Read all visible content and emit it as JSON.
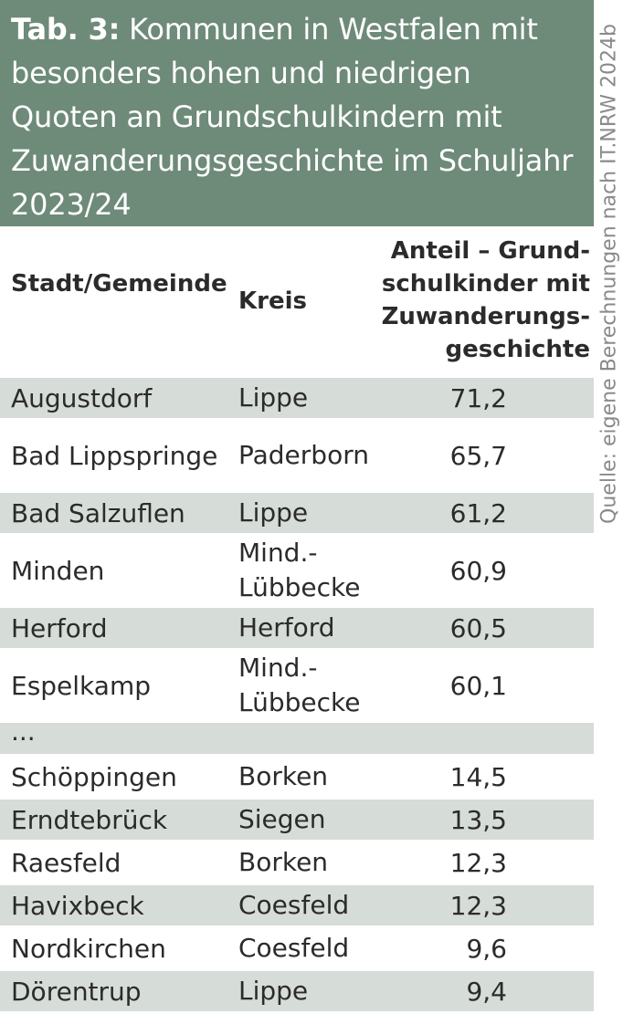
{
  "title": {
    "label": "Tab. 3:",
    "text": "Kommunen in Westfalen mit besonders hohen und niedrigen Quoten an Grundschulkindern mit Zuwanderungsgeschichte im Schul­jahr 2023/24"
  },
  "headers": {
    "city": "Stadt/Gemein­de",
    "kreis": "Kreis",
    "value": "Anteil – Grund­schulkinder mit Zuwanderungs­geschichte"
  },
  "rows": [
    {
      "city": "Augustdorf",
      "kreis": "Lippe",
      "value": "71,2"
    },
    {
      "city": "Bad Lippspringe",
      "kreis": "Pader­born",
      "value": "65,7"
    },
    {
      "city": "Bad Salzuflen",
      "kreis": "Lippe",
      "value": "61,2"
    },
    {
      "city": "Minden",
      "kreis": "Mind.-Lübbecke",
      "value": "60,9"
    },
    {
      "city": "Herford",
      "kreis": "Herford",
      "value": "60,5"
    },
    {
      "city": "Espelkamp",
      "kreis": "Mind.-Lübbecke",
      "value": "60,1"
    },
    {
      "city": "...",
      "kreis": "",
      "value": ""
    },
    {
      "city": "Schöppingen",
      "kreis": "Borken",
      "value": "14,5"
    },
    {
      "city": "Erndtebrück",
      "kreis": "Siegen",
      "value": "13,5"
    },
    {
      "city": "Raesfeld",
      "kreis": "Borken",
      "value": "12,3"
    },
    {
      "city": "Havixbeck",
      "kreis": "Coesfeld",
      "value": "12,3"
    },
    {
      "city": "Nordkirchen",
      "kreis": "Coesfeld",
      "value": "9,6"
    },
    {
      "city": "Dörentrup",
      "kreis": "Lippe",
      "value": "9,4"
    }
  ],
  "source": "Quelle: eigene Berechnungen nach IT.NRW 2024b",
  "colors": {
    "title_bg": "#6e8a79",
    "row_shade": "#d6dcd7",
    "text": "#2b2b2b",
    "source_text": "#8a8a8a"
  }
}
